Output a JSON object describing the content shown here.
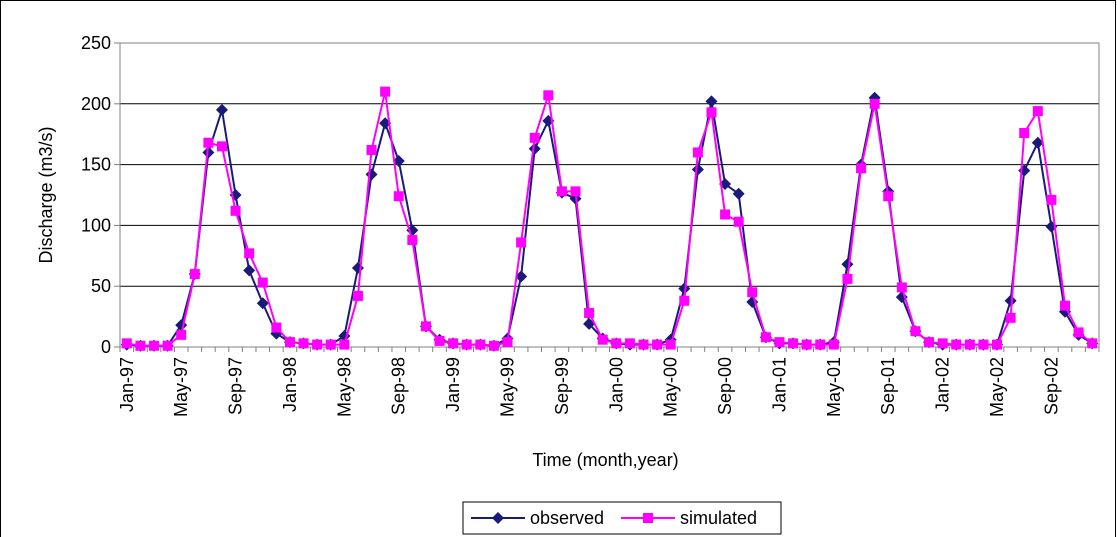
{
  "chart_data": {
    "type": "line",
    "xlabel": "Time (month,year)",
    "ylabel": "Discharge (m3/s)",
    "ylim": [
      0,
      250
    ],
    "yticks": [
      0,
      50,
      100,
      150,
      200,
      250
    ],
    "grid": true,
    "legend_position": "bottom",
    "x_tick_labels": [
      "Jan-97",
      "May-97",
      "Sep-97",
      "Jan-98",
      "May-98",
      "Sep-98",
      "Jan-99",
      "May-99",
      "Sep-99",
      "Jan-00",
      "May-00",
      "Sep-00",
      "Jan-01",
      "May-01",
      "Sep-01",
      "Jan-02",
      "May-02",
      "Sep-02"
    ],
    "x_tick_interval_months": 4,
    "x_start": "Jan-97",
    "x_end": "Dec-02",
    "series": [
      {
        "name": "observed",
        "color": "#1a1a7a",
        "marker": "diamond",
        "values": [
          2,
          1,
          1,
          1,
          18,
          60,
          160,
          195,
          125,
          63,
          36,
          11,
          4,
          3,
          2,
          2,
          9,
          65,
          142,
          184,
          153,
          96,
          17,
          6,
          3,
          2,
          2,
          1,
          7,
          58,
          163,
          186,
          127,
          122,
          19,
          7,
          3,
          2,
          2,
          2,
          6,
          48,
          146,
          202,
          134,
          126,
          37,
          8,
          3,
          3,
          2,
          2,
          4,
          68,
          150,
          205,
          128,
          41,
          13,
          4,
          2,
          2,
          2,
          2,
          2,
          38,
          145,
          168,
          99,
          29,
          10,
          3
        ]
      },
      {
        "name": "simulated",
        "color": "#ff00ff",
        "marker": "square",
        "values": [
          3,
          1,
          1,
          1,
          10,
          60,
          168,
          165,
          112,
          77,
          53,
          16,
          4,
          3,
          2,
          2,
          2,
          42,
          162,
          210,
          124,
          88,
          17,
          5,
          3,
          2,
          2,
          1,
          4,
          86,
          172,
          207,
          128,
          128,
          28,
          6,
          3,
          3,
          2,
          2,
          2,
          38,
          160,
          193,
          109,
          103,
          45,
          8,
          4,
          3,
          2,
          2,
          2,
          56,
          147,
          200,
          124,
          49,
          13,
          4,
          3,
          2,
          2,
          2,
          2,
          24,
          176,
          194,
          121,
          34,
          12,
          3
        ]
      }
    ]
  }
}
